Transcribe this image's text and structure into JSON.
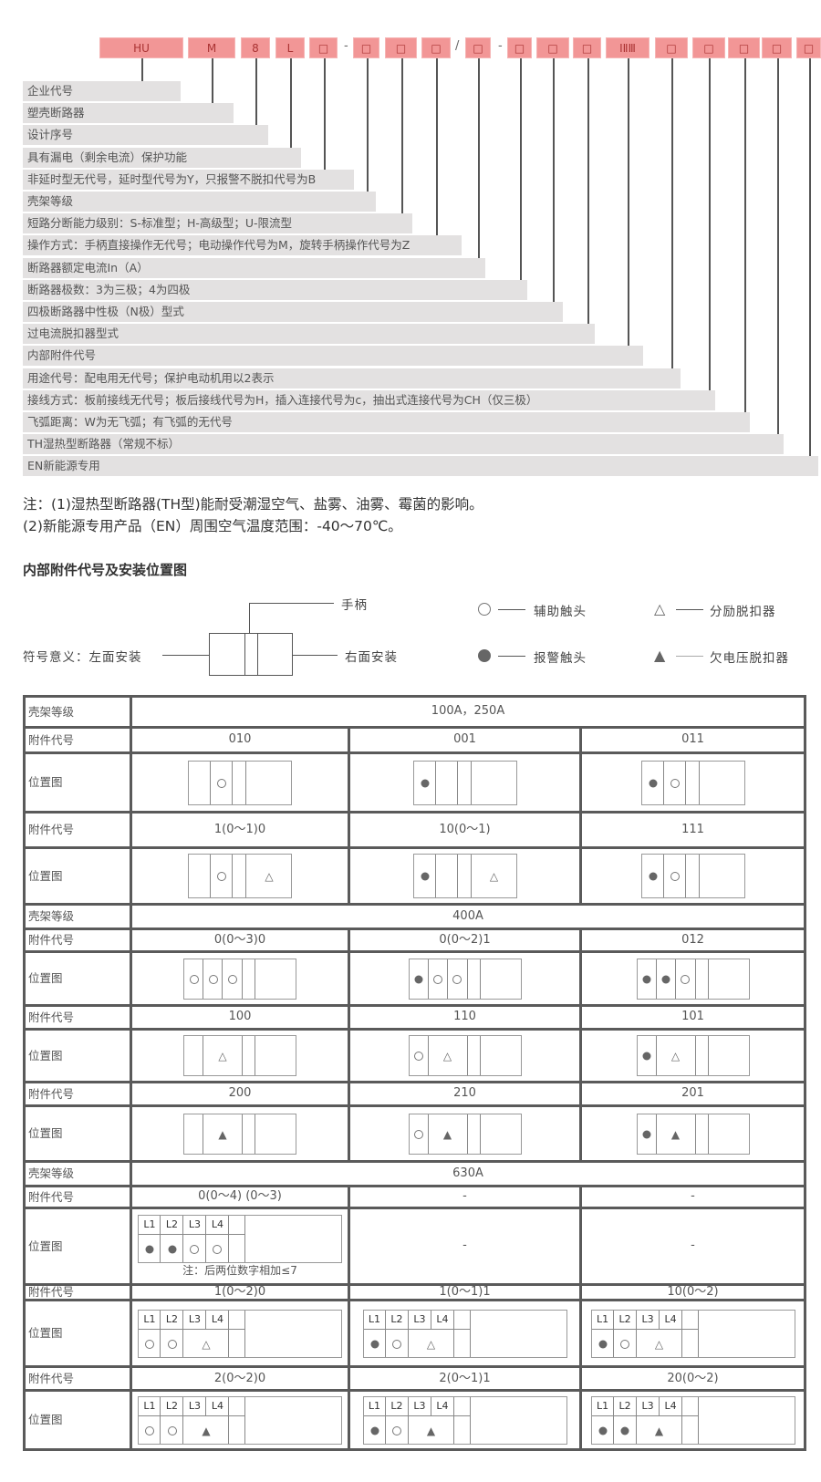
{
  "code_boxes": [
    "HU",
    "M",
    "8",
    "L",
    "□",
    "□",
    "□",
    "□",
    "□",
    "□",
    "□",
    "□",
    "ⅠⅡⅢ",
    "□",
    "□",
    "□",
    "□",
    "□"
  ],
  "separators": [
    "-",
    "/",
    "-"
  ],
  "code_rows": [
    "企业代号",
    "塑壳断路器",
    "设计序号",
    "具有漏电（剩余电流）保护功能",
    "非延时型无代号，延时型代号为Y，只报警不脱扣代号为B",
    "壳架等级",
    "短路分断能力级别：S-标准型；H-高级型；U-限流型",
    "操作方式：手柄直接操作无代号；电动操作代号为M，旋转手柄操作代号为Z",
    "断路器额定电流In（A）",
    "断路器极数：3为三极；4为四极",
    "四极断路器中性极（N极）型式",
    "过电流脱扣器型式",
    "内部附件代号",
    "用途代号：配电用无代号；保护电动机用以2表示",
    "接线方式：板前接线无代号；板后接线代号为H，插入连接代号为c，抽出式连接代号为CH（仅三极）",
    "飞弧距离：W为无飞弧；有飞弧的无代号",
    "TH湿热型断路器（常规不标）",
    "EN新能源专用"
  ],
  "notes": [
    "注：(1)湿热型断路器(TH型)能耐受潮湿空气、盐雾、油雾、霉菌的影响。",
    "(2)新能源专用产品（EN）周围空气温度范围：-40～70℃。"
  ],
  "section_title": "内部附件代号及安装位置图",
  "legend": {
    "handle": "手柄",
    "left": "符号意义：左面安装",
    "right": "右面安装",
    "aux": "辅助触头",
    "shunt": "分励脱扣器",
    "alarm": "报警触头",
    "undervoltage": "欠电压脱扣器"
  },
  "table": {
    "frame_label": "壳架等级",
    "code_label": "附件代号",
    "diagram_label": "位置图",
    "frames": [
      "100A，250A",
      "400A",
      "630A"
    ],
    "codes": [
      [
        "010",
        "001",
        "011"
      ],
      [
        "1(0～1)0",
        "10(0～1)",
        "111"
      ],
      [
        "0(0～3)0",
        "0(0～2)1",
        "012"
      ],
      [
        "100",
        "110",
        "101"
      ],
      [
        "200",
        "210",
        "201"
      ],
      [
        "0(0～4) (0～3)",
        "-",
        "-"
      ],
      [
        "1(0～2)0",
        "1(0～1)1",
        "10(0～2)"
      ],
      [
        "2(0～2)0",
        "2(0～1)1",
        "20(0～2)"
      ]
    ],
    "empty_cell": "-",
    "note_630": "注：后两位数字相加≤7",
    "pole_headers": [
      "L1",
      "L2",
      "L3",
      "L4"
    ],
    "diagrams": [
      [
        {
          "kind": "a",
          "slots": [
            "",
            "aux"
          ],
          "right": ""
        },
        {
          "kind": "a",
          "slots": [
            "alarm",
            ""
          ],
          "right": ""
        },
        {
          "kind": "a",
          "slots": [
            "alarm",
            "aux"
          ],
          "right": ""
        }
      ],
      [
        {
          "kind": "a",
          "slots": [
            "",
            "aux"
          ],
          "right": "shunt"
        },
        {
          "kind": "a",
          "slots": [
            "alarm",
            ""
          ],
          "right": "shunt"
        },
        {
          "kind": "a",
          "slots": [
            "alarm",
            "aux"
          ],
          "right": ""
        }
      ],
      [
        {
          "kind": "b",
          "slots": [
            "aux",
            "aux",
            "aux"
          ]
        },
        {
          "kind": "b",
          "slots": [
            "alarm",
            "aux",
            "aux"
          ]
        },
        {
          "kind": "b",
          "slots": [
            "alarm",
            "alarm",
            "aux"
          ]
        }
      ],
      [
        {
          "kind": "b",
          "slots": [
            ""
          ],
          "merged": "shunt"
        },
        {
          "kind": "b",
          "slots": [
            "aux"
          ],
          "merged": "shunt"
        },
        {
          "kind": "b",
          "slots": [
            "alarm"
          ],
          "merged": "shunt"
        }
      ],
      [
        {
          "kind": "b",
          "slots": [
            ""
          ],
          "merged": "undervoltage"
        },
        {
          "kind": "b",
          "slots": [
            "aux"
          ],
          "merged": "undervoltage"
        },
        {
          "kind": "b",
          "slots": [
            "alarm"
          ],
          "merged": "undervoltage"
        }
      ],
      [
        {
          "kind": "c",
          "slots": [
            "alarm",
            "alarm",
            "aux",
            "aux"
          ]
        },
        null,
        null
      ],
      [
        {
          "kind": "c",
          "slots": [
            "aux",
            "aux"
          ],
          "merged": "shunt"
        },
        {
          "kind": "c",
          "slots": [
            "alarm",
            "aux"
          ],
          "merged": "shunt"
        },
        {
          "kind": "c",
          "slots": [
            "alarm",
            "aux"
          ],
          "merged": "shunt"
        }
      ],
      [
        {
          "kind": "c",
          "slots": [
            "aux",
            "aux"
          ],
          "merged": "undervoltage"
        },
        {
          "kind": "c",
          "slots": [
            "alarm",
            "aux"
          ],
          "merged": "undervoltage"
        },
        {
          "kind": "c",
          "slots": [
            "alarm",
            "alarm"
          ],
          "merged": "undervoltage"
        }
      ]
    ]
  }
}
